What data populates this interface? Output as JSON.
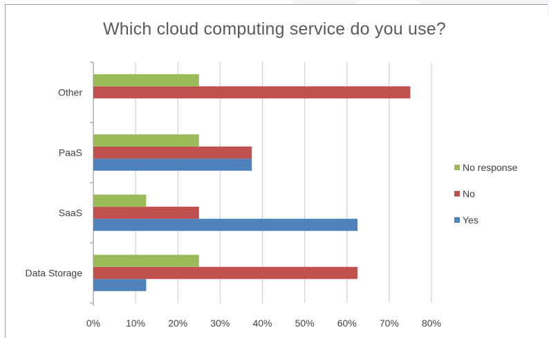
{
  "chart_data": {
    "type": "bar",
    "orientation": "horizontal",
    "title": "Which cloud computing service do you use?",
    "categories": [
      "Data Storage",
      "SaaS",
      "PaaS",
      "Other"
    ],
    "series": [
      {
        "name": "Yes",
        "color": "#4f81bd",
        "values": [
          12.5,
          62.5,
          37.5,
          0
        ]
      },
      {
        "name": "No",
        "color": "#c0504d",
        "values": [
          62.5,
          25,
          37.5,
          75
        ]
      },
      {
        "name": "No response",
        "color": "#9bbb59",
        "values": [
          25,
          12.5,
          25,
          25
        ]
      }
    ],
    "xlim": [
      0,
      80
    ],
    "x_ticks": [
      "0%",
      "10%",
      "20%",
      "30%",
      "40%",
      "50%",
      "60%",
      "70%",
      "80%"
    ],
    "xlabel": "",
    "ylabel": "",
    "grid": true,
    "legend_position": "right"
  }
}
